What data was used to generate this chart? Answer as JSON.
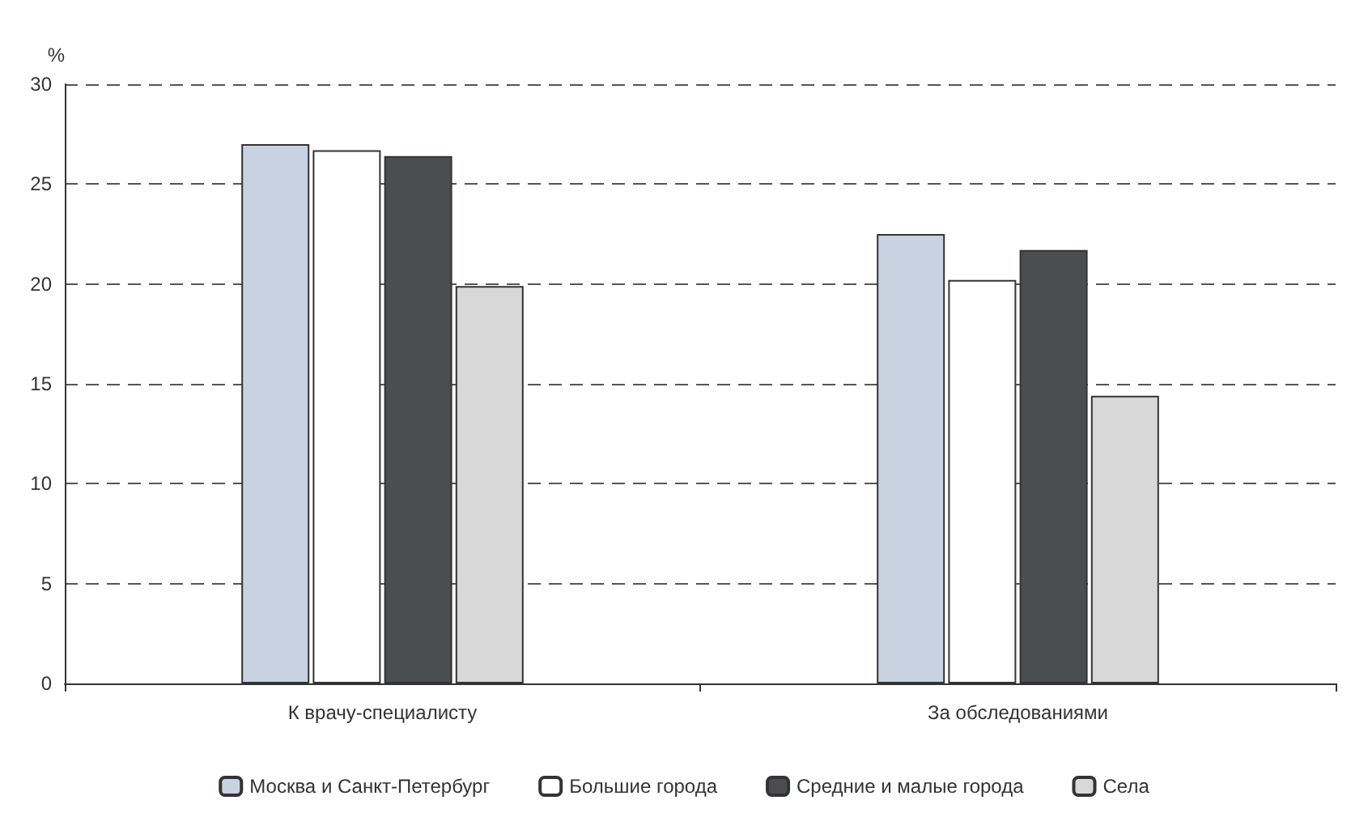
{
  "chart_data": {
    "type": "bar",
    "ylabel": "%",
    "categories": [
      "К врачу-специалисту",
      "За обследованиями"
    ],
    "series": [
      {
        "name": "Москва и Санкт-Петербург",
        "color": "#c8d2e0",
        "values": [
          27.0,
          22.5
        ]
      },
      {
        "name": "Большие города",
        "color": "#ffffff",
        "values": [
          26.7,
          20.2
        ]
      },
      {
        "name": "Средние и малые города",
        "color": "#4a4e4e",
        "values": [
          26.4,
          21.7
        ]
      },
      {
        "name": "Села",
        "color": "#d8d8d8",
        "values": [
          19.9,
          14.4
        ]
      }
    ],
    "ylim": [
      0,
      30
    ],
    "yticks": [
      0,
      5,
      10,
      15,
      20,
      25,
      30
    ],
    "grid": "y",
    "legend": "bottom"
  }
}
